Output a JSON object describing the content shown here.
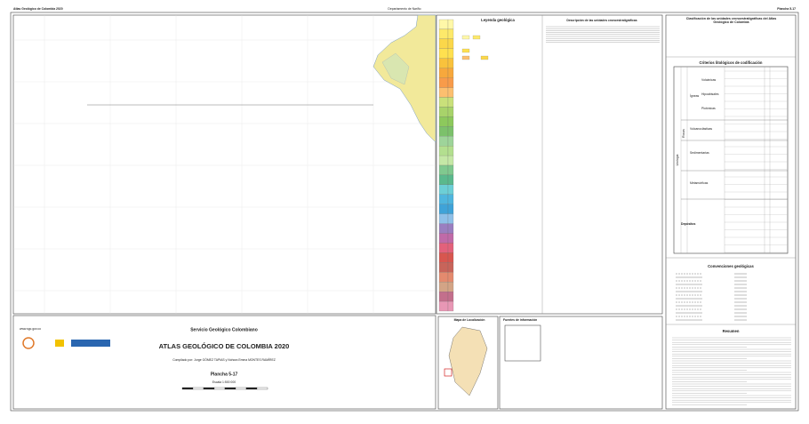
{
  "header": {
    "left": "Atlas Geológico de Colombia 2020",
    "center": "Departamento de Nariño",
    "right": "Plancha 5-17"
  },
  "legend": {
    "title": "Leyenda geológica"
  },
  "descriptions": {
    "title": "Descripción de las unidades cronoestratigráficas"
  },
  "classification": {
    "title": "Clasificación de las unidades cronoestratigráficas del Atlas Geológico de Colombia",
    "criteria_title": "Criterios litológicos de codificación",
    "lithology": "Litología",
    "rocks": "Rocas",
    "igneous": "Ígneas",
    "igneous_types": [
      "Volcánicas",
      "Hipoabisales",
      "Plutónicas"
    ],
    "others": [
      "Vulcanoclásticas",
      "Sedimentarias",
      "Metamórficas",
      "Depósitos"
    ]
  },
  "conventions": {
    "title": "Convenciones geológicas"
  },
  "summary": {
    "title": "Resumen"
  },
  "footer": {
    "url": "www.sgc.gov.co",
    "institution": "Servicio Geológico Colombiano",
    "title": "ATLAS GEOLÓGICO DE COLOMBIA 2020",
    "compiled": "Compilado por: Jorge GÓMEZ TAPIAS y Nohora Emma MONTES RAMÍREZ",
    "sheet": "Plancha 5-17",
    "scale": "Escala 1:500 000",
    "location_title": "Mapa de Localización",
    "sources_title": "Fuentes de información"
  }
}
